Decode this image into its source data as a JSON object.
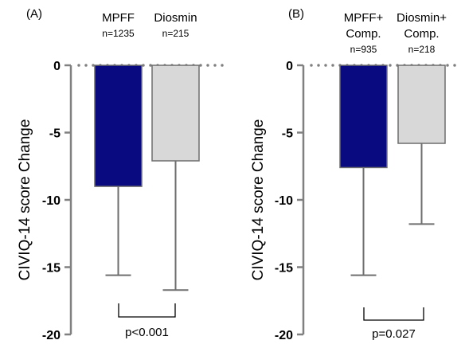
{
  "chart_data": [
    {
      "type": "bar",
      "panel_label": "(A)",
      "categories": [
        {
          "name": "MPFF",
          "n": "n=1235"
        },
        {
          "name": "Diosmin",
          "n": "n=215"
        }
      ],
      "values": [
        -9.0,
        -7.1
      ],
      "error_lower": [
        -15.6,
        -16.7
      ],
      "colors": [
        "#0a0a80",
        "#d8d8d8"
      ],
      "ylabel": "CIVIQ-14 score Change",
      "ylim": [
        -20,
        0
      ],
      "yticks": [
        "0",
        "-5",
        "-10",
        "-15",
        "-20"
      ],
      "annotation": "p<0.001"
    },
    {
      "type": "bar",
      "panel_label": "(B)",
      "categories": [
        {
          "name": "MPFF+\nComp.",
          "n": "n=935"
        },
        {
          "name": "Diosmin+\nComp.",
          "n": "n=218"
        }
      ],
      "values": [
        -7.6,
        -5.8
      ],
      "error_lower": [
        -15.6,
        -11.8
      ],
      "colors": [
        "#0a0a80",
        "#d8d8d8"
      ],
      "ylabel": "CIVIQ-14 score Change",
      "ylim": [
        -20,
        0
      ],
      "yticks": [
        "0",
        "-5",
        "-10",
        "-15",
        "-20"
      ],
      "annotation": "p=0.027"
    }
  ]
}
